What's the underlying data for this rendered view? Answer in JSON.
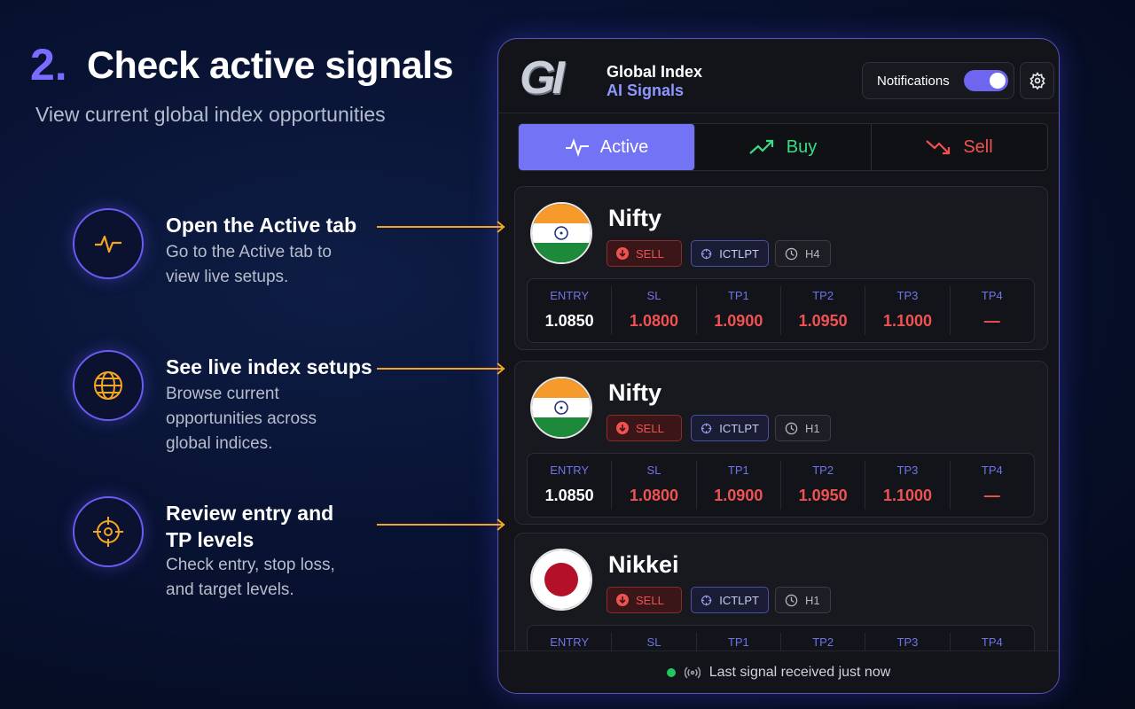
{
  "header": {
    "number": "2.",
    "title": "Check active signals",
    "subtitle": "View current global index opportunities"
  },
  "steps": [
    {
      "title": "Open the Active tab",
      "description": "Go to the Active tab to view live setups."
    },
    {
      "title": "See live index setups",
      "description": "Browse current opportunities across global indices."
    },
    {
      "title": "Review entry and TP levels",
      "description": "Check entry, stop loss, and target levels."
    }
  ],
  "app": {
    "logo": "GI",
    "brand": "Global Index",
    "brand_sub": "AI Signals",
    "notifications": "Notifications",
    "tabs": [
      "Active",
      "Buy",
      "Sell"
    ],
    "signals": [
      {
        "name": "Nifty",
        "action": "SELL",
        "strategy": "ICTLPT",
        "timeframe": "H4",
        "levels": [
          {
            "label": "ENTRY",
            "value": "1.0850"
          },
          {
            "label": "SL",
            "value": "1.0800"
          },
          {
            "label": "TP1",
            "value": "1.0900"
          },
          {
            "label": "TP2",
            "value": "1.0950"
          },
          {
            "label": "TP3",
            "value": "1.1000"
          },
          {
            "label": "TP4",
            "value": "—"
          }
        ]
      },
      {
        "name": "Nifty",
        "action": "SELL",
        "strategy": "ICTLPT",
        "timeframe": "H1",
        "levels": [
          {
            "label": "ENTRY",
            "value": "1.0850"
          },
          {
            "label": "SL",
            "value": "1.0800"
          },
          {
            "label": "TP1",
            "value": "1.0900"
          },
          {
            "label": "TP2",
            "value": "1.0950"
          },
          {
            "label": "TP3",
            "value": "1.1000"
          },
          {
            "label": "TP4",
            "value": "—"
          }
        ]
      },
      {
        "name": "Nikkei",
        "action": "SELL",
        "strategy": "ICTLPT",
        "timeframe": "H1",
        "levels": [
          {
            "label": "ENTRY"
          },
          {
            "label": "SL"
          },
          {
            "label": "TP1"
          },
          {
            "label": "TP2"
          },
          {
            "label": "TP3"
          },
          {
            "label": "TP4"
          }
        ]
      }
    ],
    "status": "Last signal received just now"
  }
}
